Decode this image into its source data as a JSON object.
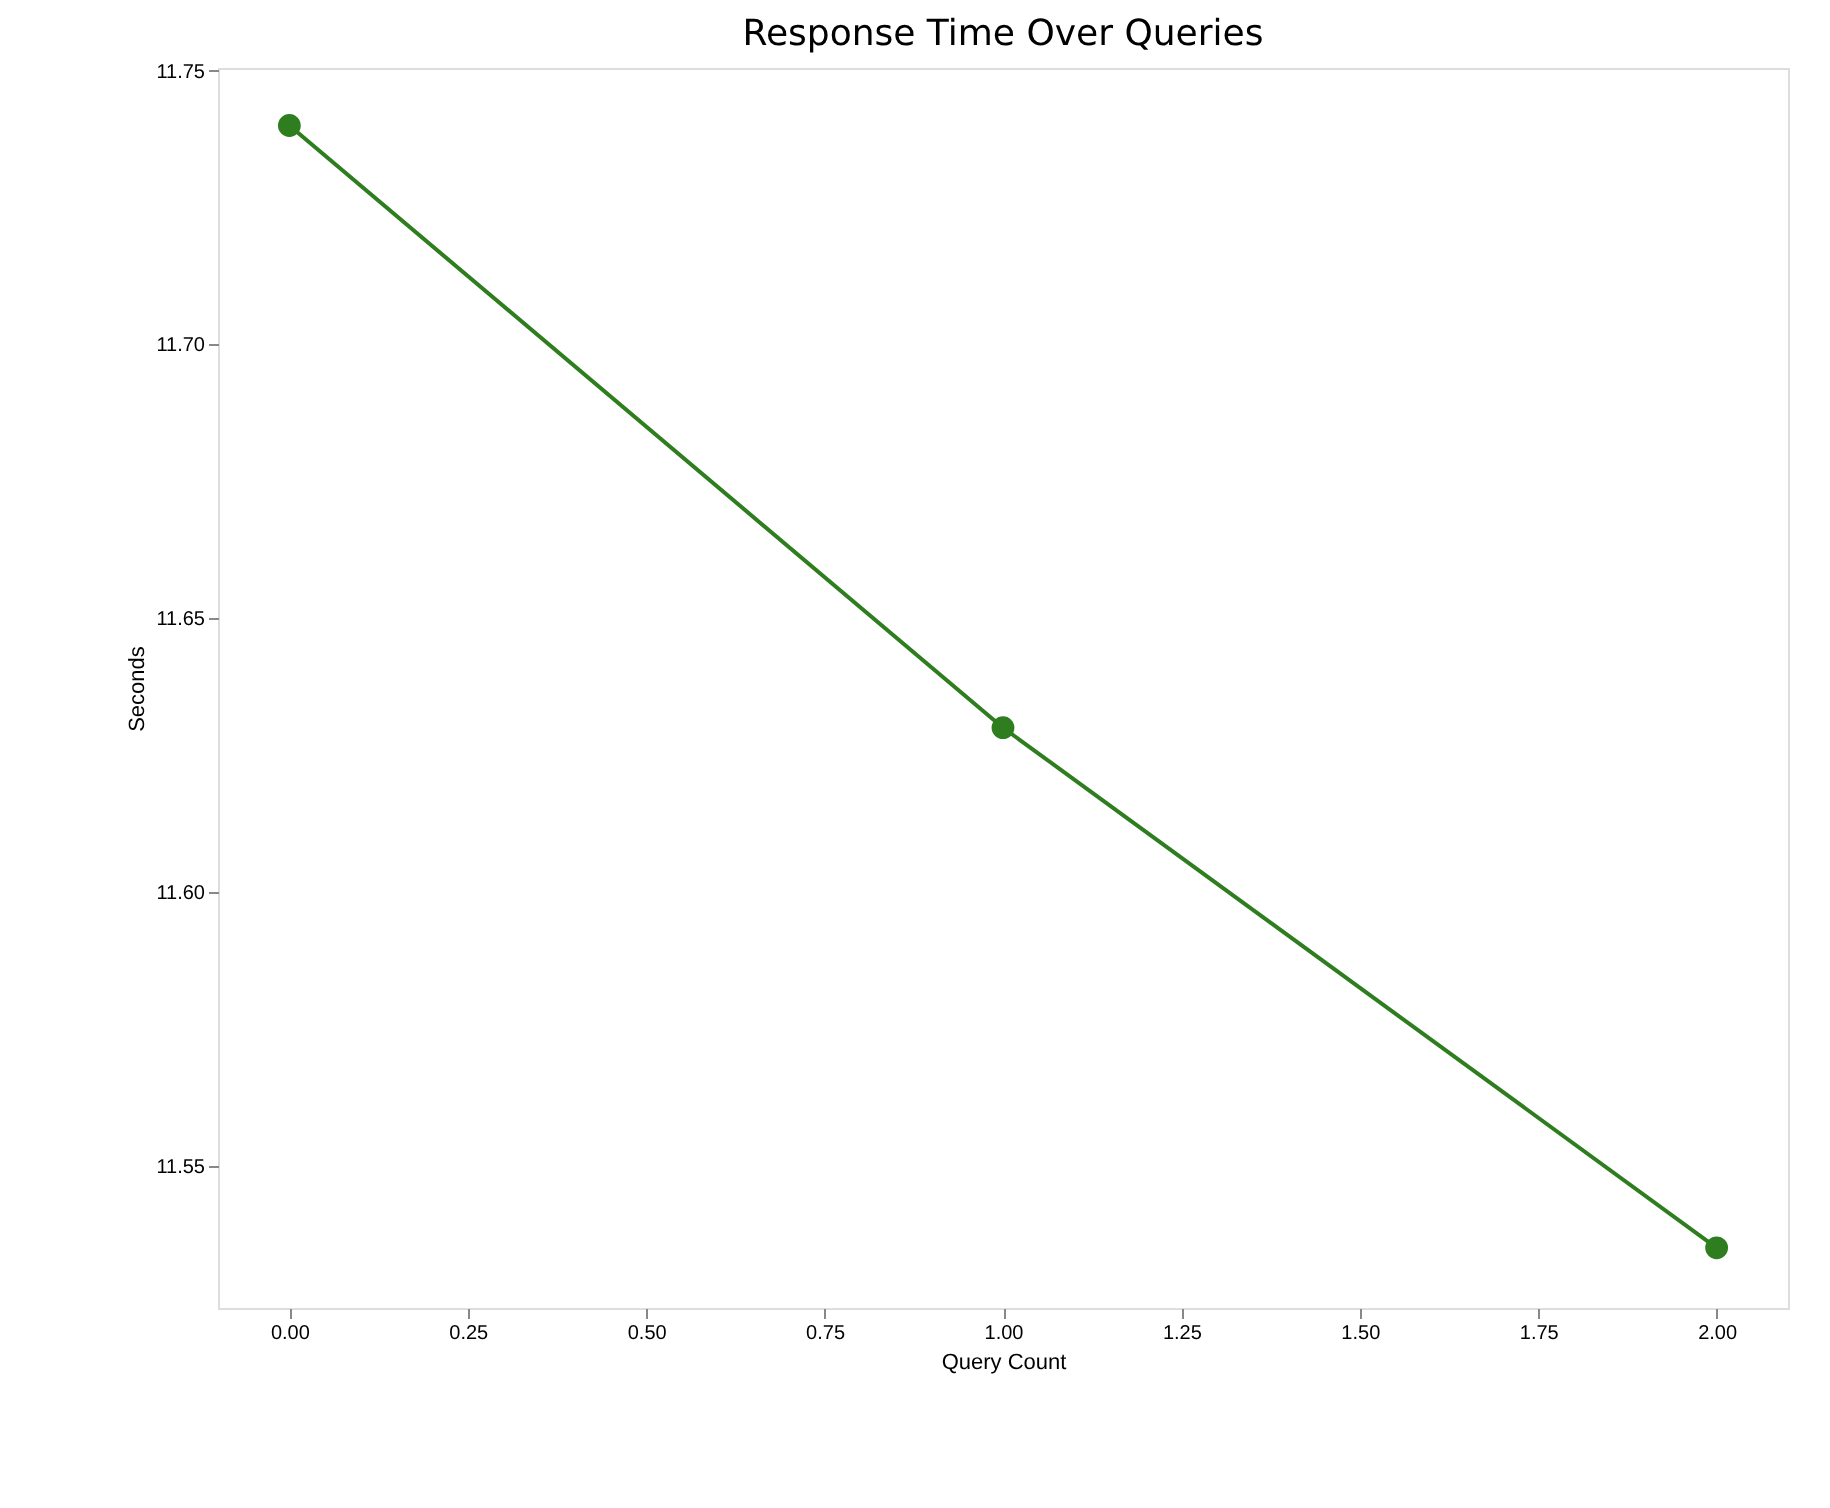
{
  "chart_data": {
    "type": "line",
    "title": "Response Time Over Queries",
    "xlabel": "Query Count",
    "ylabel": "Seconds",
    "x": [
      0,
      1,
      2
    ],
    "series": [
      {
        "color": "#2e7d1f",
        "values": [
          11.74,
          11.63,
          11.535
        ]
      }
    ],
    "xlim": [
      -0.1,
      2.1
    ],
    "xticks": [
      {
        "value": 0,
        "label": "0.00"
      },
      {
        "value": 0.25,
        "label": "0.25"
      },
      {
        "value": 0.5,
        "label": "0.50"
      },
      {
        "value": 0.75,
        "label": "0.75"
      },
      {
        "value": 1,
        "label": "1.00"
      },
      {
        "value": 1.25,
        "label": "1.25"
      },
      {
        "value": 1.5,
        "label": "1.50"
      },
      {
        "value": 1.75,
        "label": "1.75"
      },
      {
        "value": 2,
        "label": "2.00"
      }
    ],
    "ylim": [
      11.524,
      11.7505
    ],
    "yticks": [
      {
        "value": 11.55,
        "label": "11.55"
      },
      {
        "value": 11.6,
        "label": "11.60"
      },
      {
        "value": 11.65,
        "label": "11.65"
      },
      {
        "value": 11.7,
        "label": "11.70"
      },
      {
        "value": 11.75,
        "label": "11.75"
      }
    ],
    "marker": "circle",
    "line_style": "solid",
    "grid": false
  }
}
